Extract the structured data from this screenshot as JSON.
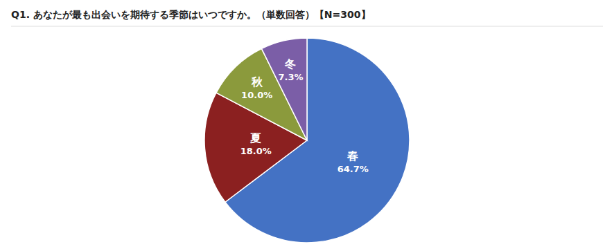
{
  "chart_data": {
    "type": "pie",
    "title": "Q1. あなたが最も出会いを期待する季節はいつですか。（単数回答）【N=300】",
    "categories": [
      "春",
      "夏",
      "秋",
      "冬"
    ],
    "values": [
      64.7,
      18.0,
      10.0,
      7.3
    ],
    "value_labels": [
      "64.7%",
      "18.0%",
      "10.0%",
      "7.3%"
    ],
    "colors": [
      "#4472C4",
      "#8B2020",
      "#8B9A3C",
      "#7B5EA7"
    ],
    "data_labels": true
  }
}
